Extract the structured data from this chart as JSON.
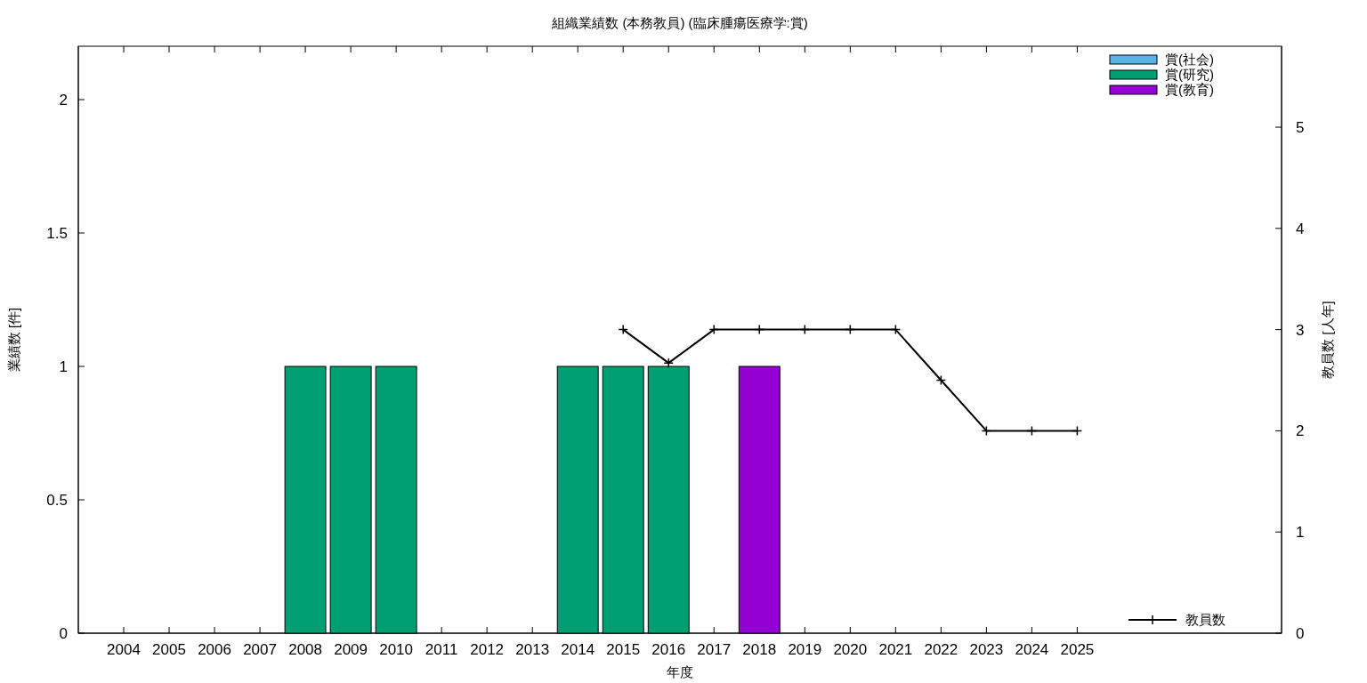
{
  "chart_data": {
    "type": "bar",
    "stacked": true,
    "title": "組織業績数 (本務教員) (臨床腫瘍医療学:賞)",
    "xlabel": "年度",
    "ylabel": "業績数 [件]",
    "y2label": "教員数 [人年]",
    "x": [
      2004,
      2005,
      2006,
      2007,
      2008,
      2009,
      2010,
      2011,
      2012,
      2013,
      2014,
      2015,
      2016,
      2017,
      2018,
      2019,
      2020,
      2021,
      2022,
      2023,
      2024,
      2025
    ],
    "xlim": [
      2003,
      2029.5
    ],
    "xticks": [
      2004,
      2005,
      2006,
      2007,
      2008,
      2009,
      2010,
      2011,
      2012,
      2013,
      2014,
      2015,
      2016,
      2017,
      2018,
      2019,
      2020,
      2021,
      2022,
      2023,
      2024,
      2025
    ],
    "series": [
      {
        "name": "賞(社会)",
        "color": "#56b4e9",
        "values": [
          0,
          0,
          0,
          0,
          0,
          0,
          0,
          0,
          0,
          0,
          0,
          0,
          0,
          0,
          0,
          0,
          0,
          0,
          0,
          0,
          0,
          0
        ]
      },
      {
        "name": "賞(研究)",
        "color": "#009e73",
        "values": [
          0,
          0,
          0,
          0,
          1,
          1,
          1,
          0,
          0,
          0,
          1,
          1,
          1,
          0,
          0,
          0,
          0,
          0,
          0,
          0,
          0,
          0
        ]
      },
      {
        "name": "賞(教育)",
        "color": "#9400d3",
        "values": [
          0,
          0,
          0,
          0,
          0,
          0,
          0,
          0,
          0,
          0,
          0,
          0,
          0,
          0,
          1,
          0,
          0,
          0,
          0,
          0,
          0,
          0
        ]
      },
      {
        "name": "教員数",
        "type": "line",
        "axis": "y2",
        "color": "#000000",
        "marker": "cross",
        "values": [
          null,
          null,
          null,
          null,
          null,
          null,
          null,
          null,
          null,
          null,
          null,
          3,
          2.67,
          3,
          3,
          3,
          3,
          3,
          2.5,
          2,
          2,
          2
        ]
      }
    ],
    "ylim": [
      0,
      2.2
    ],
    "yticks": [
      0,
      0.5,
      1,
      1.5,
      2
    ],
    "y2lim": [
      0,
      5.8
    ],
    "y2ticks": [
      0,
      1,
      2,
      3,
      4,
      5
    ],
    "legend": "top right",
    "grid": false
  }
}
